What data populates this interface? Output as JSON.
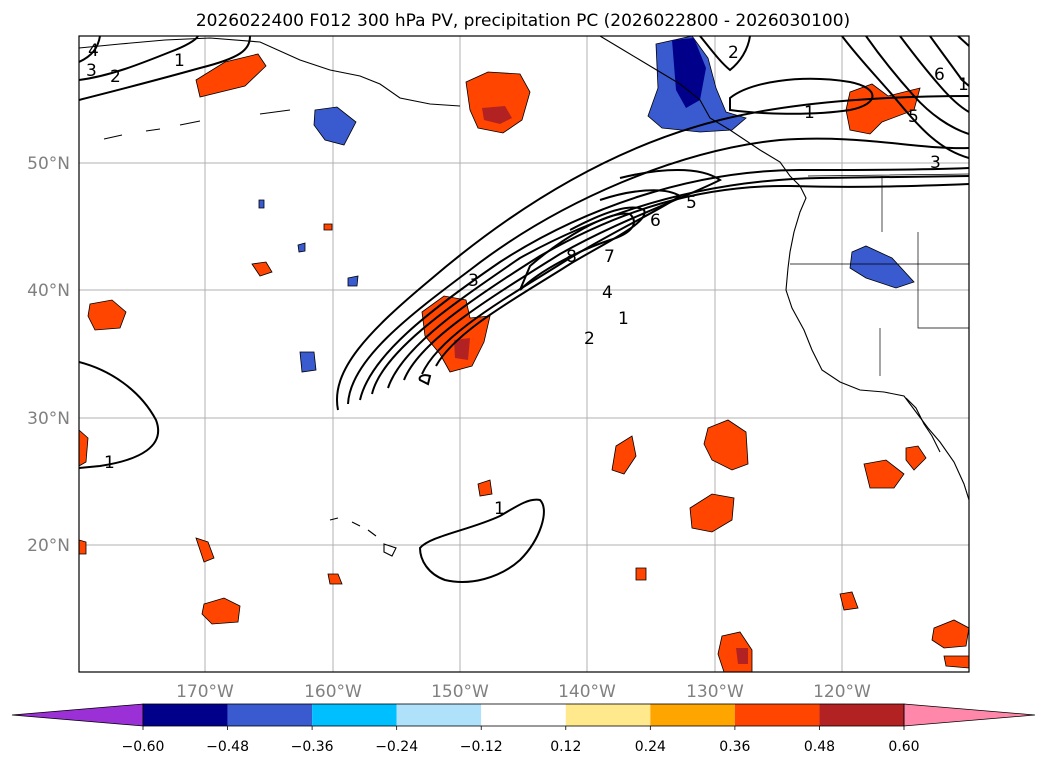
{
  "figure": {
    "title": "2026022400 F012 300 hPa PV, precipitation PC (2026022800 - 2026030100)"
  },
  "map": {
    "lat_labels": [
      "50°N",
      "40°N",
      "30°N",
      "20°N"
    ],
    "lon_labels": [
      "170°W",
      "160°W",
      "150°W",
      "140°W",
      "130°W",
      "120°W"
    ],
    "contour_labels": [
      "3",
      "4",
      "2",
      "1",
      "1",
      "3",
      "4",
      "8",
      "7",
      "6",
      "5",
      "2",
      "1",
      "1",
      "2",
      "1",
      "5",
      "6",
      "3",
      "1"
    ]
  },
  "colorbar": {
    "ticks": [
      "−0.60",
      "−0.48",
      "−0.36",
      "−0.24",
      "−0.12",
      "0.12",
      "0.24",
      "0.36",
      "0.48",
      "0.60"
    ],
    "colors": {
      "under": "#9b30d6",
      "bins": [
        "#00008b",
        "#3a5bd0",
        "#00bfff",
        "#afe1fa",
        "#ffffff",
        "#ffe98c",
        "#ffa500",
        "#ff4500",
        "#b22222",
        "#ff88aa"
      ]
    }
  }
}
